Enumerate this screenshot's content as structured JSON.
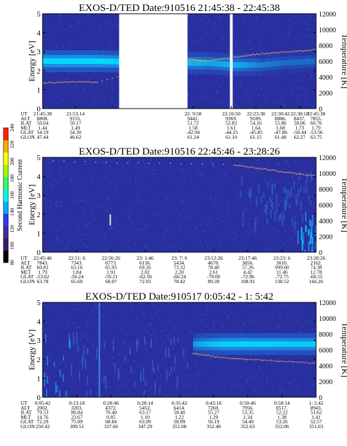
{
  "colors": {
    "background": "#2a2fa0",
    "band_core": "#00e8ff",
    "band_edge": "#1a6fd8",
    "speckle": "#3a55c8",
    "temperature_dots": "#ffb050",
    "gap": "#ffffff"
  },
  "colorbar": {
    "label": "Second Harmonic Current",
    "ticks": [
      "80",
      "100",
      "120",
      "140",
      "160",
      "180",
      "200",
      "220",
      "240"
    ],
    "colors": [
      "#000000",
      "#3a1a6a",
      "#4a2aa0",
      "#2a3aff",
      "#00b0ff",
      "#00ffe0",
      "#30ff60",
      "#a0ff00",
      "#ffff00",
      "#ffb000",
      "#ff2000"
    ]
  },
  "row_labels": [
    "UT",
    "ALT",
    "ILAT",
    "MLT",
    "GLAT",
    "GLON"
  ],
  "chart_data": [
    {
      "type": "heatmap",
      "title": "EXOS-D/TED   Date:910516  21:45:38 - 22:45:38",
      "ylabel": "Energy [eV]",
      "y2label": "Temperature [K]",
      "ylim": [
        0,
        5
      ],
      "y2lim": [
        0,
        12000
      ],
      "yticks": [
        "0",
        "1",
        "2",
        "3",
        "4",
        "5"
      ],
      "y2ticks": [
        "0",
        "2000",
        "4000",
        "6000",
        "8000",
        "10000",
        "12000"
      ],
      "data_gaps": [
        [
          0.28,
          0.53
        ],
        [
          0.685,
          0.695
        ]
      ],
      "band_energy": [
        2.5,
        2.5,
        2.5,
        2.4,
        2.4,
        2.3,
        2.3,
        2.4,
        2.5
      ],
      "band_x": [
        0.0,
        0.1,
        0.2,
        0.53,
        0.6,
        0.7,
        0.8,
        0.87,
        1.0
      ],
      "band_strength": [
        1.0,
        1.0,
        1.0,
        0.55,
        0.45,
        0.55,
        0.25,
        0.2,
        0.2
      ],
      "temp_x": [
        0.0,
        0.1,
        0.2,
        0.53,
        0.6,
        0.7,
        0.8,
        0.9,
        1.0
      ],
      "temp_energy": [
        1.35,
        1.4,
        1.4,
        2.6,
        2.5,
        2.7,
        2.9,
        3.0,
        3.1
      ],
      "ephemeris": [
        [
          "21:45:38",
          "21:53:14",
          "",
          "",
          "22: 9:58",
          "22:16:50",
          "22:23:38",
          "22:30:42",
          "22:38:10",
          "22:45:38"
        ],
        [
          "8808.",
          "9155.",
          "",
          "",
          "9441.",
          "9369.",
          "9189.",
          "8886.",
          "8437.",
          "7855."
        ],
        [
          "50.04",
          "50.17",
          "",
          "",
          "51.72",
          "52.82",
          "54.16",
          "55.86",
          "58.06",
          "60.76"
        ],
        [
          "1.44",
          "1.49",
          "",
          "",
          "1.58",
          "1.61",
          "1.64",
          "1.68",
          "1.73",
          "1.79"
        ],
        [
          "54.19",
          "54.30",
          "",
          "",
          "-42.94",
          "-44.25",
          "-45.85",
          "-47.86",
          "-50.44",
          "-53.56"
        ],
        [
          "47.44",
          "46.62",
          "",
          "",
          "61.24",
          "61.10",
          "61.15",
          "61.48",
          "62.27",
          "63.75"
        ]
      ],
      "ephemeris_x": [
        0.0,
        0.12,
        0.0,
        0.0,
        0.55,
        0.69,
        0.78,
        0.87,
        0.94,
        1.0
      ]
    },
    {
      "type": "heatmap",
      "title": "EXOS-D/TED   Date:910516  22:45:46 - 23:28:26",
      "ylabel": "Energy [eV]",
      "y2label": "Temperature [K]",
      "ylim": [
        0,
        5
      ],
      "y2lim": [
        0,
        12000
      ],
      "yticks": [
        "0",
        "1",
        "2",
        "3",
        "4",
        "5"
      ],
      "y2ticks": [
        "0",
        "2000",
        "4000",
        "6000",
        "8000",
        "10000",
        "12000"
      ],
      "data_gaps": [],
      "band_energy": [],
      "band_x": [],
      "band_strength": [],
      "temp_x": [
        0.0,
        0.7,
        0.8,
        0.9,
        1.0
      ],
      "temp_energy": [
        4.8,
        4.6,
        4.4,
        4.2,
        4.0
      ],
      "ephemeris": [
        [
          "22:45:46",
          "22:51: 6",
          "22:56:26",
          "23: 1:46",
          "23: 7: 6",
          "23:12:26",
          "23:17:46",
          "23:23: 6",
          "23:28:26"
        ],
        [
          "7843.",
          "7343.",
          "6773.",
          "6136.",
          "5434.",
          "4670.",
          "3856.",
          "3010.",
          "2162."
        ],
        [
          "60.82",
          "63.16",
          "65.93",
          "69.26",
          "73.32",
          "78.40",
          "57.26",
          "999.00",
          "74.38"
        ],
        [
          "1.79",
          "1.84",
          "1.91",
          "2.02",
          "2.20",
          "2.61",
          "4.42",
          "11.46",
          "12.78"
        ],
        [
          "-53.62",
          "-56.24",
          "-59.21",
          "-62.56",
          "-66.24",
          "-70.00",
          "-72.96",
          "-72.75",
          "-66.55"
        ],
        [
          "63.78",
          "65.60",
          "68.07",
          "72.03",
          "78.42",
          "89.39",
          "108.91",
          "138.52",
          "166.26"
        ]
      ],
      "ephemeris_x": [
        0.0,
        0.125,
        0.25,
        0.375,
        0.5,
        0.625,
        0.75,
        0.875,
        1.0
      ]
    },
    {
      "type": "heatmap",
      "title": "EXOS-D/TED   Date:910517  0:05:42 - 1: 5:42",
      "ylabel": "Energy [eV]",
      "y2label": "Temperature [K]",
      "ylim": [
        0,
        5
      ],
      "y2lim": [
        0,
        12000
      ],
      "yticks": [
        "0",
        "1",
        "2",
        "3",
        "4",
        "5"
      ],
      "y2ticks": [
        "0",
        "2000",
        "4000",
        "6000",
        "8000",
        "10000",
        "12000"
      ],
      "data_gaps": [],
      "band_energy": [
        2.8,
        2.8,
        2.8,
        2.8,
        2.8
      ],
      "band_x": [
        0.55,
        0.65,
        0.75,
        0.88,
        1.0
      ],
      "band_strength": [
        0.4,
        0.85,
        0.9,
        0.85,
        0.8
      ],
      "temp_x": [
        0.55,
        0.65,
        0.75,
        0.88,
        1.0
      ],
      "temp_energy": [
        2.3,
        2.1,
        2.0,
        1.9,
        1.8
      ],
      "ephemeris": [
        [
          "0:05:42",
          "0:13:18",
          "0:20:46",
          "0:28:14",
          "0:35:42",
          "0:43:18",
          "0:50:46",
          "0:58:14",
          "1: 5:42"
        ],
        [
          "2002.",
          "3203.",
          "4372.",
          "5452.",
          "6414.",
          "7260.",
          "7956.",
          "8517.",
          "8943."
        ],
        [
          "79.53",
          "80.84",
          "70.40",
          "63.17",
          "58.40",
          "55.27",
          "53.35",
          "52.22",
          "51.62"
        ],
        [
          "14.76",
          "23.67",
          "0.85",
          "1.10",
          "1.22",
          "1.29",
          "1.34",
          "1.38",
          "1.41"
        ],
        [
          "72.29",
          "75.09",
          "68.84",
          "63.09",
          "58.99",
          "56.19",
          "54.40",
          "53.26",
          "52.57"
        ],
        [
          "250.42",
          "309.51",
          "337.66",
          "347.29",
          "351.08",
          "352.48",
          "352.63",
          "352.06",
          "351.03"
        ]
      ],
      "ephemeris_x": [
        0.0,
        0.125,
        0.25,
        0.375,
        0.5,
        0.625,
        0.75,
        0.875,
        1.0
      ]
    }
  ]
}
